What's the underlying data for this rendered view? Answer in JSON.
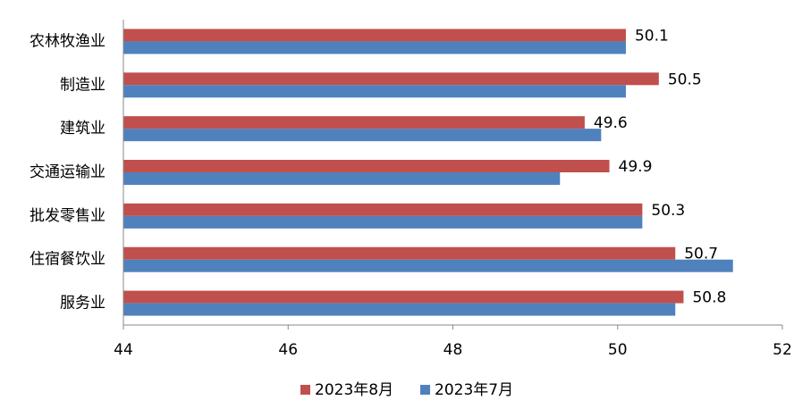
{
  "chart_data": {
    "type": "barh",
    "categories": [
      "农林牧渔业",
      "制造业",
      "建筑业",
      "交通运输业",
      "批发零售业",
      "住宿餐饮业",
      "服务业"
    ],
    "series": [
      {
        "name": "2023年8月",
        "color": "#c0504d",
        "values": [
          50.1,
          50.5,
          49.6,
          49.9,
          50.3,
          50.7,
          50.8
        ]
      },
      {
        "name": "2023年7月",
        "color": "#4f81bd",
        "values": [
          50.1,
          50.1,
          49.8,
          49.3,
          50.3,
          51.4,
          50.7
        ]
      }
    ],
    "xlim": [
      44,
      52
    ],
    "xticks": [
      44,
      46,
      48,
      50,
      52
    ],
    "legend": "bottom"
  }
}
